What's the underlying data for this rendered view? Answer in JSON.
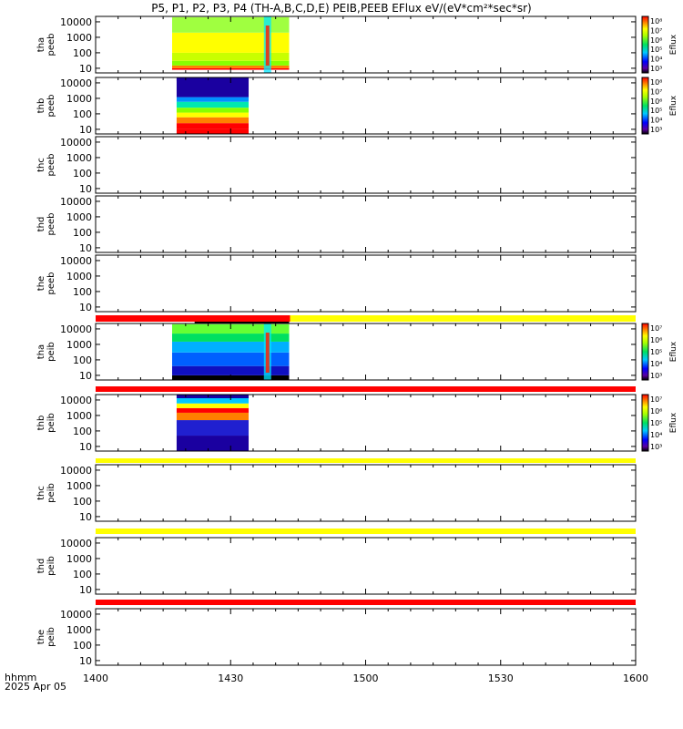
{
  "title": "P5, P1, P2, P3, P4 (TH-A,B,C,D,E) PEIB,PEEB EFlux eV/(eV*cm²*sec*sr)",
  "footer": {
    "line1": "hhmm",
    "line2": "2025 Apr 05"
  },
  "chart_data": {
    "type": "heatmap",
    "title": "P5, P1, P2, P3, P4 (TH-A,B,C,D,E) PEIB,PEEB EFlux eV/(eV*cm²*sec*sr)",
    "x": {
      "start": "14:00",
      "end": "16:00",
      "ticks": [
        "1400",
        "1430",
        "1500",
        "1530",
        "1600"
      ]
    },
    "panels": [
      {
        "name": "tha peeb",
        "label": [
          "tha",
          "peeb"
        ],
        "yticks": [
          "10",
          "100",
          "1000",
          "10000"
        ],
        "ylog": true,
        "data": "spectrogram",
        "span": [
          "14:17",
          "14:43"
        ],
        "colorbar": {
          "label": "Eflux",
          "ticks": [
            "10³",
            "10⁴",
            "10⁵",
            "10⁶",
            "10⁷",
            "10⁸"
          ]
        }
      },
      {
        "name": "thb peeb",
        "label": [
          "thb",
          "peeb"
        ],
        "yticks": [
          "10",
          "100",
          "1000",
          "10000"
        ],
        "ylog": true,
        "data": "spectrogram",
        "span": [
          "14:18",
          "14:34"
        ],
        "colorbar": {
          "label": "Eflux",
          "ticks": [
            "10³",
            "10⁴",
            "10⁵",
            "10⁶",
            "10⁷",
            "10⁸"
          ]
        }
      },
      {
        "name": "thc peeb",
        "label": [
          "thc",
          "peeb"
        ],
        "yticks": [
          "10",
          "100",
          "1000",
          "10000"
        ],
        "ylog": true,
        "data": "none"
      },
      {
        "name": "thd peeb",
        "label": [
          "thd",
          "peeb"
        ],
        "yticks": [
          "10",
          "100",
          "1000",
          "10000"
        ],
        "ylog": true,
        "data": "none"
      },
      {
        "name": "the peeb",
        "label": [
          "the",
          "peeb"
        ],
        "yticks": [
          "10",
          "100",
          "1000",
          "10000"
        ],
        "ylog": true,
        "data": "none"
      },
      {
        "name": "tha peib",
        "label": [
          "tha",
          "peib"
        ],
        "yticks": [
          "10",
          "100",
          "1000",
          "10000"
        ],
        "ylog": true,
        "data": "spectrogram",
        "span": [
          "14:17",
          "14:43"
        ],
        "colorbar": {
          "label": "Eflux",
          "ticks": [
            "10³",
            "10⁴",
            "10⁵",
            "10⁶",
            "10⁷"
          ]
        }
      },
      {
        "name": "thb peib",
        "label": [
          "thb",
          "peib"
        ],
        "yticks": [
          "10",
          "100",
          "1000",
          "10000"
        ],
        "ylog": true,
        "data": "spectrogram",
        "span": [
          "14:18",
          "14:34"
        ],
        "colorbar": {
          "label": "Eflux",
          "ticks": [
            "10³",
            "10⁴",
            "10⁵",
            "10⁶",
            "10⁷"
          ]
        }
      },
      {
        "name": "thc peib",
        "label": [
          "thc",
          "peib"
        ],
        "yticks": [
          "10",
          "100",
          "1000",
          "10000"
        ],
        "ylog": true,
        "data": "none"
      },
      {
        "name": "thd peib",
        "label": [
          "thd",
          "peib"
        ],
        "yticks": [
          "10",
          "100",
          "1000",
          "10000"
        ],
        "ylog": true,
        "data": "none"
      },
      {
        "name": "the peib",
        "label": [
          "the",
          "peib"
        ],
        "yticks": [
          "10",
          "100",
          "1000",
          "10000"
        ],
        "ylog": true,
        "data": "none"
      }
    ],
    "colors": {
      "red": "#ff0000",
      "yellow": "#ffff00",
      "black": "#000000"
    }
  }
}
